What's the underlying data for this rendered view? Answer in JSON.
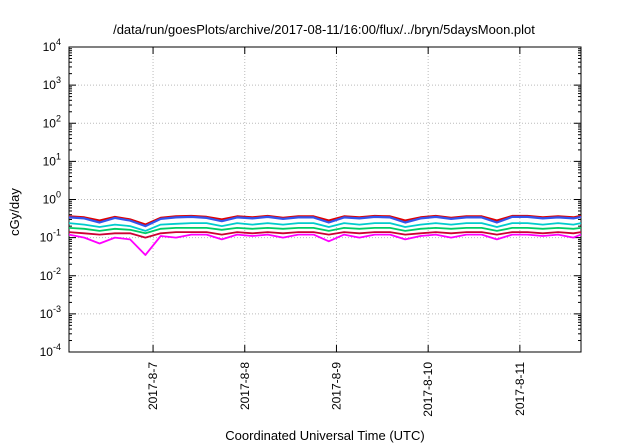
{
  "chart_data": {
    "type": "line",
    "title": "/data/run/goesPlots/archive/2017-08-11/16:00/flux/../bryn/5daysMoon.plot",
    "xlabel": "Coordinated Universal Time (UTC)",
    "ylabel": "cGy/day",
    "yscale": "log",
    "ylim": [
      0.0001,
      10000
    ],
    "xlim": [
      "2017-08-06 02:00",
      "2017-08-11 16:00"
    ],
    "grid": true,
    "y_ticks": [
      {
        "value": 0.0001,
        "base": "10",
        "exp": "-4"
      },
      {
        "value": 0.001,
        "base": "10",
        "exp": "-3"
      },
      {
        "value": 0.01,
        "base": "10",
        "exp": "-2"
      },
      {
        "value": 0.1,
        "base": "10",
        "exp": "-1"
      },
      {
        "value": 1,
        "base": "10",
        "exp": "0"
      },
      {
        "value": 10,
        "base": "10",
        "exp": "1"
      },
      {
        "value": 100,
        "base": "10",
        "exp": "2"
      },
      {
        "value": 1000,
        "base": "10",
        "exp": "3"
      },
      {
        "value": 10000,
        "base": "10",
        "exp": "4"
      }
    ],
    "x_ticks": [
      {
        "value": "2017-08-07 00:00",
        "label": "2017-8-7"
      },
      {
        "value": "2017-08-08 00:00",
        "label": "2017-8-8"
      },
      {
        "value": "2017-08-09 00:00",
        "label": "2017-8-9"
      },
      {
        "value": "2017-08-10 00:00",
        "label": "2017-8-10"
      },
      {
        "value": "2017-08-11 00:00",
        "label": "2017-8-11"
      }
    ],
    "x": [
      "2017-08-06 02:00",
      "2017-08-06 06:00",
      "2017-08-06 10:00",
      "2017-08-06 14:00",
      "2017-08-06 18:00",
      "2017-08-06 22:00",
      "2017-08-07 02:00",
      "2017-08-07 06:00",
      "2017-08-07 10:00",
      "2017-08-07 14:00",
      "2017-08-07 18:00",
      "2017-08-07 22:00",
      "2017-08-08 02:00",
      "2017-08-08 06:00",
      "2017-08-08 10:00",
      "2017-08-08 14:00",
      "2017-08-08 18:00",
      "2017-08-08 22:00",
      "2017-08-09 02:00",
      "2017-08-09 06:00",
      "2017-08-09 10:00",
      "2017-08-09 14:00",
      "2017-08-09 18:00",
      "2017-08-09 22:00",
      "2017-08-10 02:00",
      "2017-08-10 06:00",
      "2017-08-10 10:00",
      "2017-08-10 14:00",
      "2017-08-10 18:00",
      "2017-08-10 22:00",
      "2017-08-11 02:00",
      "2017-08-11 06:00",
      "2017-08-11 10:00",
      "2017-08-11 14:00",
      "2017-08-11 16:00"
    ],
    "series": [
      {
        "color": "#ff00ff",
        "values": [
          0.12,
          0.1,
          0.07,
          0.1,
          0.09,
          0.035,
          0.11,
          0.1,
          0.12,
          0.12,
          0.09,
          0.12,
          0.11,
          0.12,
          0.1,
          0.12,
          0.12,
          0.08,
          0.12,
          0.1,
          0.12,
          0.12,
          0.09,
          0.11,
          0.12,
          0.1,
          0.12,
          0.12,
          0.09,
          0.12,
          0.12,
          0.11,
          0.12,
          0.1,
          0.12
        ]
      },
      {
        "color": "#cc0033",
        "values": [
          0.14,
          0.13,
          0.12,
          0.13,
          0.13,
          0.1,
          0.13,
          0.14,
          0.14,
          0.14,
          0.12,
          0.14,
          0.13,
          0.14,
          0.13,
          0.14,
          0.14,
          0.12,
          0.14,
          0.13,
          0.14,
          0.14,
          0.12,
          0.13,
          0.14,
          0.13,
          0.14,
          0.14,
          0.12,
          0.14,
          0.14,
          0.13,
          0.14,
          0.13,
          0.14
        ]
      },
      {
        "color": "#00cc66",
        "values": [
          0.18,
          0.17,
          0.15,
          0.17,
          0.16,
          0.13,
          0.17,
          0.18,
          0.18,
          0.18,
          0.16,
          0.18,
          0.17,
          0.18,
          0.17,
          0.18,
          0.18,
          0.15,
          0.18,
          0.17,
          0.18,
          0.18,
          0.15,
          0.17,
          0.18,
          0.17,
          0.18,
          0.18,
          0.15,
          0.18,
          0.18,
          0.17,
          0.18,
          0.17,
          0.18
        ]
      },
      {
        "color": "#00cccc",
        "values": [
          0.24,
          0.22,
          0.19,
          0.22,
          0.2,
          0.15,
          0.22,
          0.23,
          0.24,
          0.24,
          0.2,
          0.24,
          0.22,
          0.24,
          0.22,
          0.24,
          0.24,
          0.19,
          0.24,
          0.22,
          0.24,
          0.24,
          0.19,
          0.22,
          0.24,
          0.22,
          0.24,
          0.24,
          0.19,
          0.24,
          0.24,
          0.22,
          0.24,
          0.22,
          0.24
        ]
      },
      {
        "color": "#e00000",
        "values": [
          0.36,
          0.34,
          0.28,
          0.35,
          0.3,
          0.22,
          0.33,
          0.36,
          0.37,
          0.35,
          0.3,
          0.36,
          0.34,
          0.37,
          0.33,
          0.36,
          0.36,
          0.28,
          0.36,
          0.34,
          0.37,
          0.36,
          0.28,
          0.34,
          0.37,
          0.33,
          0.36,
          0.36,
          0.28,
          0.37,
          0.37,
          0.34,
          0.36,
          0.34,
          0.37
        ]
      },
      {
        "color": "#3355ee",
        "values": [
          0.34,
          0.32,
          0.25,
          0.33,
          0.28,
          0.2,
          0.31,
          0.34,
          0.35,
          0.33,
          0.27,
          0.34,
          0.32,
          0.35,
          0.31,
          0.34,
          0.34,
          0.25,
          0.34,
          0.32,
          0.35,
          0.34,
          0.25,
          0.32,
          0.35,
          0.31,
          0.34,
          0.34,
          0.25,
          0.35,
          0.35,
          0.32,
          0.34,
          0.32,
          0.35
        ]
      }
    ]
  }
}
